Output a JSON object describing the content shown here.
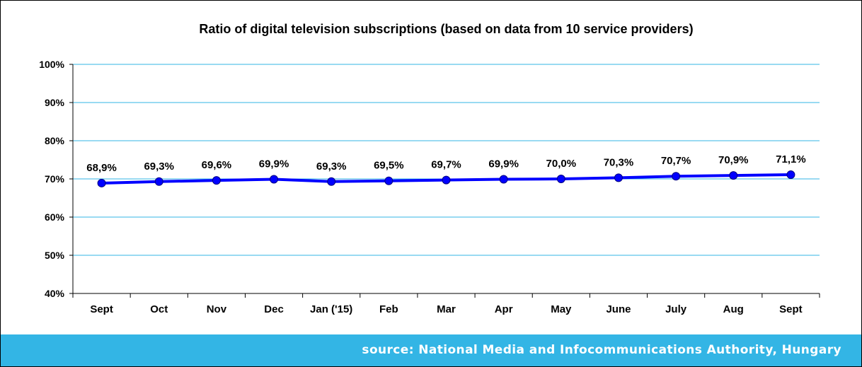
{
  "chart_data": {
    "type": "line",
    "title": "Ratio of digital television subscriptions (based on data from 10 service providers)",
    "xlabel": "",
    "ylabel": "",
    "categories": [
      "Sept",
      "Oct",
      "Nov",
      "Dec",
      "Jan ('15)",
      "Feb",
      "Mar",
      "Apr",
      "May",
      "June",
      "July",
      "Aug",
      "Sept"
    ],
    "values": [
      68.9,
      69.3,
      69.6,
      69.9,
      69.3,
      69.5,
      69.7,
      69.9,
      70.0,
      70.3,
      70.7,
      70.9,
      71.1
    ],
    "data_labels": [
      "68,9%",
      "69,3%",
      "69,6%",
      "69,9%",
      "69,3%",
      "69,5%",
      "69,7%",
      "69,9%",
      "70,0%",
      "70,3%",
      "70,7%",
      "70,9%",
      "71,1%"
    ],
    "ylim": [
      40,
      100
    ],
    "yticks": [
      40,
      50,
      60,
      70,
      80,
      90,
      100
    ],
    "ytick_labels": [
      "40%",
      "50%",
      "60%",
      "70%",
      "80%",
      "90%",
      "100%"
    ],
    "grid": true,
    "legend": "none",
    "colors": {
      "line": "#0000ff",
      "marker": "#0000ff",
      "grid": "#33b5e5"
    }
  },
  "footer": {
    "source": "source: National Media and Infocommunications Authority, Hungary",
    "band_color": "#33b5e5"
  }
}
